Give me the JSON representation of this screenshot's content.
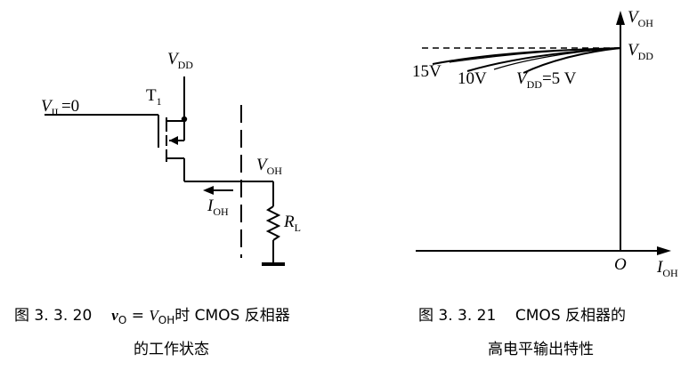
{
  "fig1": {
    "vdd_var": "V",
    "vdd_sub": "DD",
    "vin_var": "V",
    "vin_sub": "IL",
    "vin_value": "=0",
    "transistor_name": "T",
    "transistor_sub": "1",
    "vout_var": "V",
    "vout_sub": "OH",
    "iout_var": "I",
    "iout_sub": "OH",
    "rl_var": "R",
    "rl_sub": "L",
    "caption_line1": {
      "prefix": "图 3. 3. 20",
      "v_var": "v",
      "v_sub": "O",
      "eq": " = ",
      "v2_var": "V",
      "v2_sub": "OH",
      "suffix": "时 CMOS 反相器"
    },
    "caption_line2": "的工作状态"
  },
  "fig2": {
    "y_axis_var": "V",
    "y_axis_sub": "OH",
    "vdd_var": "V",
    "vdd_sub": "DD",
    "x_axis_var": "I",
    "x_axis_sub": "OH",
    "origin": "O",
    "curve_15": "15V",
    "curve_10": "10V",
    "curve_5_var": "V",
    "curve_5_sub": "DD",
    "curve_5_value": "=5 V",
    "caption_line1": "图 3. 3. 21    CMOS 反相器的",
    "caption_line2": "高电平输出特性"
  }
}
